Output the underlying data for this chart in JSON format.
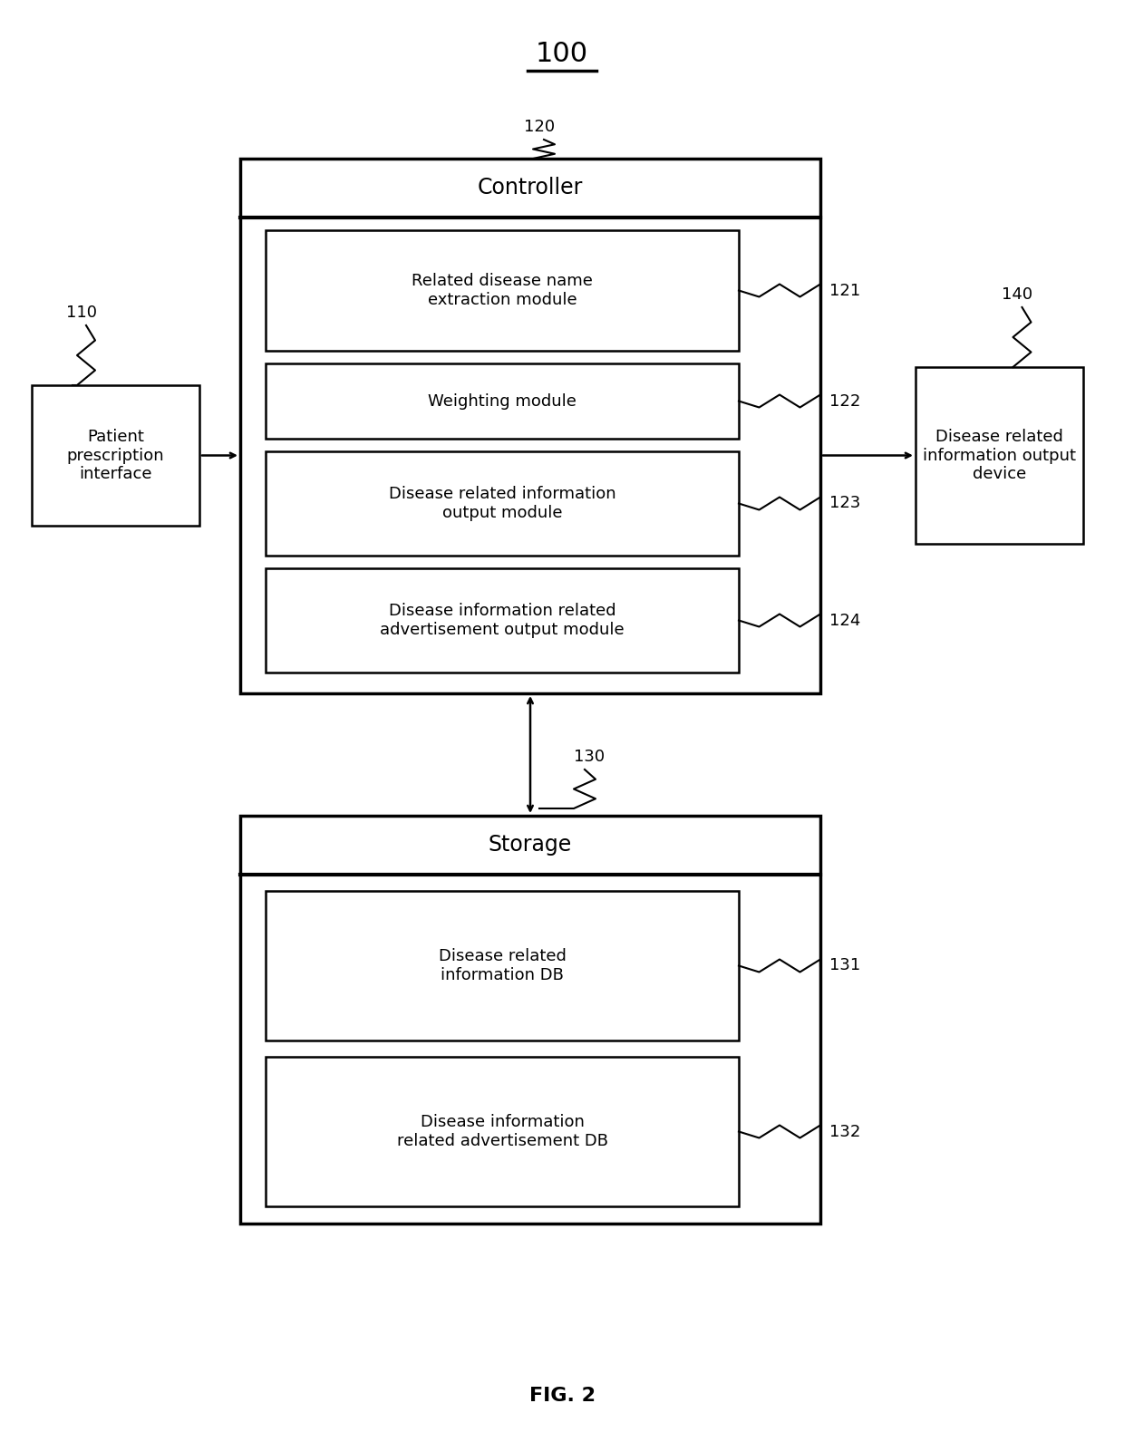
{
  "bg_color": "#ffffff",
  "fig_label": "FIG. 2",
  "system_label": "100",
  "controller_label": "120",
  "storage_label": "130",
  "patient_label": "110",
  "output_device_label": "140",
  "controller_title": "Controller",
  "storage_title": "Storage",
  "patient_box_text": "Patient\nprescription\ninterface",
  "output_device_text": "Disease related\ninformation output\ndevice",
  "modules_controller": [
    {
      "text": "Related disease name\nextraction module",
      "label": "121"
    },
    {
      "text": "Weighting module",
      "label": "122"
    },
    {
      "text": "Disease related information\noutput module",
      "label": "123"
    },
    {
      "text": "Disease information related\nadvertisement output module",
      "label": "124"
    }
  ],
  "modules_storage": [
    {
      "text": "Disease related\ninformation DB",
      "label": "131"
    },
    {
      "text": "Disease information\nrelated advertisement DB",
      "label": "132"
    }
  ],
  "font_size_title": 17,
  "font_size_module": 13,
  "font_size_ref": 13,
  "font_size_fig": 16,
  "font_size_system": 22
}
